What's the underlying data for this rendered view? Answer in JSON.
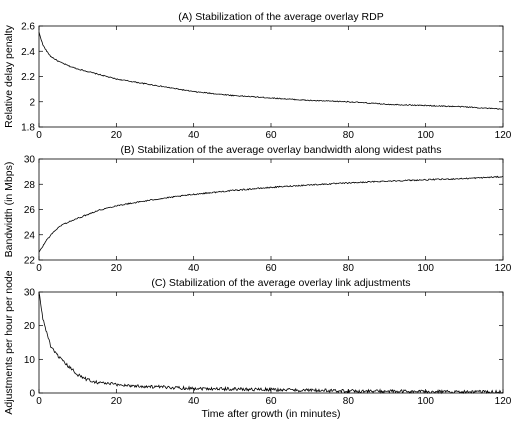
{
  "chart_data": [
    {
      "type": "line",
      "title": "(A) Stabilization of the average overlay RDP",
      "ylabel": "Relative delay penalty",
      "xlabel": "",
      "xlim": [
        0,
        120
      ],
      "ylim": [
        1.8,
        2.6
      ],
      "xticks": [
        "0",
        "20",
        "40",
        "60",
        "80",
        "100",
        "120"
      ],
      "yticks": [
        "1.8",
        "2",
        "2.2",
        "2.4",
        "2.6"
      ],
      "grid": false,
      "series": [
        {
          "x": [
            0,
            1,
            2,
            3,
            5,
            8,
            10,
            15,
            20,
            30,
            40,
            50,
            60,
            70,
            80,
            90,
            100,
            110,
            115,
            120
          ],
          "values": [
            2.55,
            2.45,
            2.4,
            2.36,
            2.32,
            2.28,
            2.26,
            2.22,
            2.18,
            2.13,
            2.08,
            2.05,
            2.03,
            2.01,
            2.0,
            1.98,
            1.97,
            1.96,
            1.95,
            1.94
          ],
          "noise": 0.004
        }
      ]
    },
    {
      "type": "line",
      "title": "(B) Stabilization of the average overlay bandwidth along widest paths",
      "ylabel": "Bandwidth (in Mbps)",
      "xlabel": "",
      "xlim": [
        0,
        120
      ],
      "ylim": [
        22,
        30
      ],
      "xticks": [
        "0",
        "20",
        "40",
        "60",
        "80",
        "100",
        "120"
      ],
      "yticks": [
        "22",
        "24",
        "26",
        "28",
        "30"
      ],
      "grid": false,
      "series": [
        {
          "x": [
            0,
            1,
            2,
            4,
            6,
            10,
            15,
            20,
            30,
            40,
            50,
            60,
            70,
            80,
            90,
            100,
            110,
            120
          ],
          "values": [
            22.6,
            23.1,
            23.6,
            24.3,
            24.8,
            25.3,
            25.9,
            26.3,
            26.8,
            27.2,
            27.5,
            27.75,
            27.95,
            28.1,
            28.25,
            28.35,
            28.45,
            28.6
          ],
          "noise": 0.05
        }
      ]
    },
    {
      "type": "line",
      "title": "(C) Stabilization of the average overlay link adjustments",
      "ylabel": "Adjustments per hour per node",
      "xlabel": "Time after growth (in minutes)",
      "xlim": [
        0,
        120
      ],
      "ylim": [
        0,
        30
      ],
      "xticks": [
        "0",
        "20",
        "40",
        "60",
        "80",
        "100",
        "120"
      ],
      "yticks": [
        "0",
        "10",
        "20",
        "30"
      ],
      "grid": false,
      "series": [
        {
          "x": [
            0,
            0.5,
            1,
            2,
            3,
            4,
            5,
            6,
            8,
            10,
            12,
            15,
            20,
            25,
            30,
            40,
            50,
            60,
            70,
            80,
            90,
            100,
            110,
            120
          ],
          "values": [
            30,
            26,
            22,
            18,
            14,
            12,
            11,
            9.5,
            7.5,
            5.5,
            4.2,
            3.2,
            2.5,
            2.1,
            1.8,
            1.4,
            1.2,
            1.0,
            0.8,
            0.6,
            0.5,
            0.4,
            0.3,
            0.3
          ],
          "noise": 0.5
        }
      ]
    }
  ]
}
